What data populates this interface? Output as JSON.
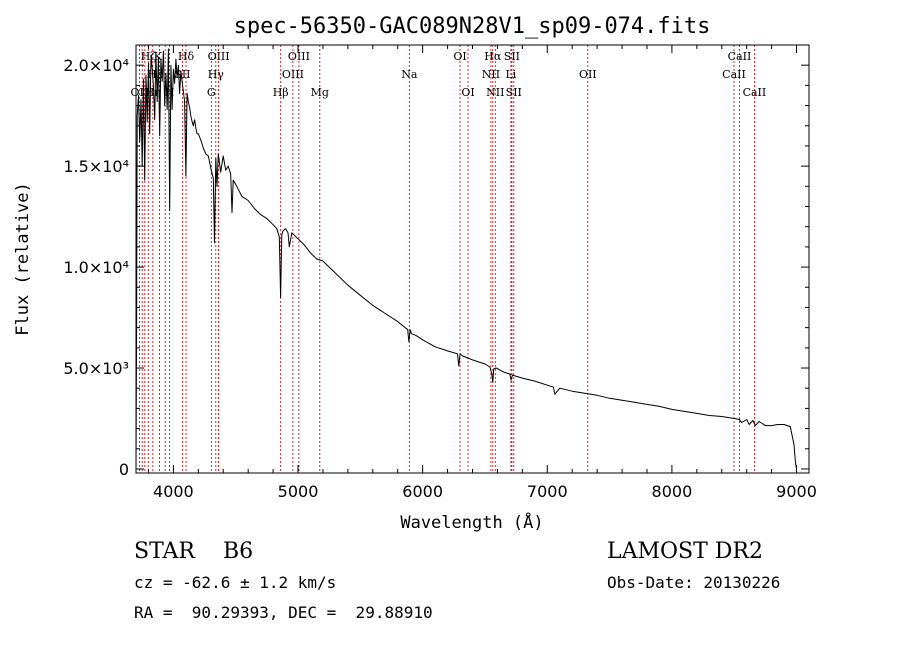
{
  "chart_data": {
    "type": "line",
    "title": "spec-56350-GAC089N28V1_sp09-074.fits",
    "xlabel": "Wavelength (Å)",
    "ylabel": "Flux (relative)",
    "xlim": [
      3700,
      9100
    ],
    "ylim": [
      -200,
      21000
    ],
    "xticks": [
      {
        "value": 4000,
        "label": "4000"
      },
      {
        "value": 5000,
        "label": "5000"
      },
      {
        "value": 6000,
        "label": "6000"
      },
      {
        "value": 7000,
        "label": "7000"
      },
      {
        "value": 8000,
        "label": "8000"
      },
      {
        "value": 9000,
        "label": "9000"
      }
    ],
    "yticks": [
      {
        "value": 0,
        "label": "0"
      },
      {
        "value": 5000,
        "label": "5.0×10³"
      },
      {
        "value": 10000,
        "label": "1.0×10⁴"
      },
      {
        "value": 15000,
        "label": "1.5×10⁴"
      },
      {
        "value": 20000,
        "label": "2.0×10⁴"
      }
    ],
    "series": [
      {
        "x": [
          3700,
          3705,
          3710,
          3720,
          3730,
          3740,
          3750,
          3760,
          3770,
          3780,
          3790,
          3800,
          3810,
          3820,
          3830,
          3840,
          3850,
          3860,
          3870,
          3880,
          3890,
          3900,
          3910,
          3920,
          3930,
          3940,
          3950,
          3960,
          3970,
          3980,
          3990,
          4000,
          4010,
          4020,
          4030,
          4040,
          4050,
          4060,
          4070,
          4080,
          4090,
          4100,
          4110,
          4120,
          4130,
          4140,
          4150,
          4160,
          4170,
          4180,
          4190,
          4200,
          4220,
          4240,
          4260,
          4280,
          4300,
          4320,
          4330,
          4340,
          4350,
          4360,
          4380,
          4400,
          4420,
          4440,
          4460,
          4470,
          4480,
          4500,
          4550,
          4600,
          4650,
          4700,
          4750,
          4800,
          4830,
          4850,
          4860,
          4870,
          4880,
          4900,
          4920,
          4930,
          4950,
          5000,
          5050,
          5100,
          5150,
          5200,
          5300,
          5400,
          5500,
          5600,
          5700,
          5800,
          5880,
          5890,
          5900,
          5910,
          5950,
          6000,
          6100,
          6200,
          6280,
          6290,
          6300,
          6320,
          6400,
          6500,
          6540,
          6555,
          6563,
          6570,
          6590,
          6650,
          6700,
          6710,
          6720,
          6800,
          6900,
          7000,
          7050,
          7060,
          7100,
          7200,
          7300,
          7400,
          7500,
          7600,
          7700,
          7800,
          7900,
          8000,
          8100,
          8200,
          8300,
          8400,
          8450,
          8500,
          8540,
          8560,
          8600,
          8620,
          8650,
          8670,
          8700,
          8750,
          8800,
          8850,
          8900,
          8950,
          8980,
          8990,
          9000
        ],
        "y": [
          0,
          7000,
          17500,
          18500,
          16200,
          18300,
          15000,
          19300,
          14300,
          19500,
          17200,
          20100,
          16600,
          20500,
          19800,
          19000,
          17300,
          20600,
          18200,
          20400,
          16500,
          20300,
          19200,
          20700,
          18000,
          19600,
          17800,
          20800,
          12800,
          20000,
          17800,
          19800,
          19100,
          20300,
          19400,
          20000,
          18600,
          19700,
          19200,
          18700,
          18200,
          14500,
          18600,
          18200,
          17900,
          17500,
          17200,
          17000,
          17300,
          16900,
          16600,
          16600,
          16300,
          15900,
          15600,
          15500,
          14900,
          14400,
          11200,
          15400,
          14000,
          15600,
          14700,
          15500,
          14800,
          15000,
          14600,
          12700,
          14300,
          14100,
          13500,
          13300,
          12900,
          12600,
          12400,
          12100,
          11900,
          11500,
          8500,
          11600,
          11800,
          11900,
          11700,
          11000,
          11700,
          11400,
          11100,
          10700,
          10400,
          10300,
          9700,
          9100,
          8600,
          8100,
          7700,
          7300,
          6900,
          6300,
          6900,
          6700,
          6600,
          6400,
          6050,
          5850,
          5700,
          5100,
          5700,
          5600,
          5400,
          5200,
          5050,
          4700,
          4300,
          4950,
          5000,
          4800,
          4700,
          4400,
          4650,
          4500,
          4350,
          4150,
          4050,
          3700,
          4000,
          3850,
          3750,
          3650,
          3500,
          3400,
          3300,
          3200,
          3100,
          2950,
          2850,
          2750,
          2650,
          2600,
          2550,
          2500,
          2450,
          2300,
          2450,
          2200,
          2400,
          2150,
          2350,
          2150,
          2150,
          2200,
          2200,
          2100,
          1200,
          400,
          0
        ]
      }
    ],
    "line_labels": [
      {
        "text": "Hζ",
        "row": 1,
        "wave": 3800
      },
      {
        "text": "K",
        "row": 1,
        "wave": 3875
      },
      {
        "text": "Hδ",
        "row": 1,
        "wave": 4101
      },
      {
        "text": "OIII",
        "row": 1,
        "wave": 4363
      },
      {
        "text": "OIII",
        "row": 1,
        "wave": 5007
      },
      {
        "text": "OI",
        "row": 1,
        "wave": 6300
      },
      {
        "text": "Hα",
        "row": 1,
        "wave": 6563
      },
      {
        "text": "SII",
        "row": 1,
        "wave": 6716
      },
      {
        "text": "CaII",
        "row": 1,
        "wave": 8542
      },
      {
        "text": "Hε",
        "row": 2,
        "wave": 3850
      },
      {
        "text": "SII",
        "row": 2,
        "wave": 4072
      },
      {
        "text": "Hγ",
        "row": 2,
        "wave": 4340
      },
      {
        "text": "OIII",
        "row": 2,
        "wave": 4959
      },
      {
        "text": "Na",
        "row": 2,
        "wave": 5893
      },
      {
        "text": "NII",
        "row": 2,
        "wave": 6548
      },
      {
        "text": "Li",
        "row": 2,
        "wave": 6708
      },
      {
        "text": "OII",
        "row": 2,
        "wave": 7325
      },
      {
        "text": "CaII",
        "row": 2,
        "wave": 8498
      },
      {
        "text": "OII",
        "row": 3,
        "wave": 3727
      },
      {
        "text": "Hη",
        "row": 3,
        "wave": 3835
      },
      {
        "text": "H",
        "row": 3,
        "wave": 3968
      },
      {
        "text": "G",
        "row": 3,
        "wave": 4304
      },
      {
        "text": "Hβ",
        "row": 3,
        "wave": 4861
      },
      {
        "text": "Mg",
        "row": 3,
        "wave": 5175
      },
      {
        "text": "OI",
        "row": 3,
        "wave": 6364
      },
      {
        "text": "NII",
        "row": 3,
        "wave": 6583
      },
      {
        "text": "SII",
        "row": 3,
        "wave": 6731
      },
      {
        "text": "CaII",
        "row": 3,
        "wave": 8662
      }
    ],
    "line_markers": [
      3727,
      3750,
      3771,
      3798,
      3835,
      3889,
      3934,
      3968,
      4072,
      4101,
      4304,
      4340,
      4363,
      4861,
      4959,
      5007,
      5175,
      5893,
      6300,
      6364,
      6548,
      6563,
      6583,
      6708,
      6716,
      6731,
      7325,
      8498,
      8542,
      8662
    ],
    "marker_color": "#b30000",
    "line_color": "#000000"
  },
  "info": {
    "object": "STAR    B6",
    "survey": "LAMOST DR2",
    "redshift": "cz = -62.6 ± 1.2 km/s",
    "obs_date": "Obs-Date: 20130226",
    "coords": "RA =  90.29393, DEC =  29.88910"
  }
}
